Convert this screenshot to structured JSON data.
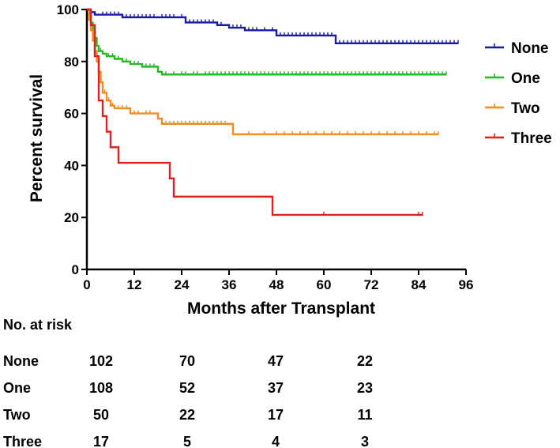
{
  "chart_data": {
    "type": "line",
    "subtype": "kaplan-meier",
    "title": "",
    "xlabel": "Months after Transplant",
    "ylabel": "Percent survival",
    "xlim": [
      0,
      96
    ],
    "ylim": [
      0,
      100
    ],
    "xticks": [
      0,
      12,
      24,
      36,
      48,
      60,
      72,
      84,
      96
    ],
    "yticks": [
      0,
      20,
      40,
      60,
      80,
      100
    ],
    "grid": false,
    "legend_position": "right",
    "series": [
      {
        "name": "None",
        "color": "#1a1aa6",
        "steps": [
          [
            0,
            100
          ],
          [
            1,
            99
          ],
          [
            2,
            98
          ],
          [
            9,
            97
          ],
          [
            17,
            97
          ],
          [
            25,
            95
          ],
          [
            33,
            94
          ],
          [
            36,
            93
          ],
          [
            40,
            92
          ],
          [
            48,
            90
          ],
          [
            63,
            87
          ],
          [
            94,
            87
          ]
        ],
        "censored_x": [
          2,
          4,
          5,
          6,
          7,
          8,
          9,
          10,
          11,
          12,
          13,
          14,
          15,
          16,
          17,
          19,
          20,
          21,
          22,
          24,
          26,
          27,
          28,
          29,
          30,
          31,
          32,
          34,
          37,
          38,
          39,
          41,
          42,
          43,
          45,
          47,
          49,
          50,
          51,
          52,
          53,
          54,
          55,
          56,
          57,
          58,
          59,
          60,
          61,
          62,
          64,
          65,
          66,
          67,
          68,
          69,
          70,
          71,
          72,
          73,
          74,
          75,
          76,
          77,
          78,
          79,
          80,
          81,
          82,
          83,
          84,
          85,
          86,
          87,
          88,
          89,
          90,
          91,
          92,
          93,
          94
        ]
      },
      {
        "name": "One",
        "color": "#22bb22",
        "steps": [
          [
            0,
            100
          ],
          [
            0.5,
            98
          ],
          [
            1,
            95
          ],
          [
            1.5,
            92
          ],
          [
            2,
            89
          ],
          [
            2.5,
            86
          ],
          [
            3,
            84
          ],
          [
            4,
            83
          ],
          [
            5,
            82
          ],
          [
            7,
            81
          ],
          [
            9,
            80
          ],
          [
            11,
            79
          ],
          [
            14,
            78
          ],
          [
            18,
            76
          ],
          [
            19,
            75
          ],
          [
            91,
            75
          ]
        ],
        "censored_x": [
          3.5,
          5.5,
          6.5,
          8,
          10,
          12,
          13,
          15,
          16,
          17,
          20,
          22,
          24,
          25,
          27,
          28,
          30,
          31,
          32,
          33,
          34,
          35,
          36,
          37,
          38,
          39,
          40,
          41,
          42,
          43,
          44,
          45,
          46,
          47,
          48,
          49,
          50,
          51,
          52,
          53,
          54,
          55,
          56,
          57,
          58,
          59,
          60,
          61,
          62,
          63,
          64,
          65,
          66,
          67,
          68,
          69,
          70,
          71,
          72,
          73,
          74,
          75,
          76,
          77,
          78,
          79,
          80,
          81,
          82,
          83,
          84,
          85,
          86,
          87,
          88,
          89,
          90,
          91
        ]
      },
      {
        "name": "Two",
        "color": "#f28c1f",
        "steps": [
          [
            0,
            100
          ],
          [
            0.5,
            96
          ],
          [
            1,
            92
          ],
          [
            1.5,
            88
          ],
          [
            2,
            84
          ],
          [
            2.5,
            80
          ],
          [
            3,
            76
          ],
          [
            3.5,
            72
          ],
          [
            4,
            68
          ],
          [
            5,
            65
          ],
          [
            6,
            63
          ],
          [
            7,
            62
          ],
          [
            11,
            60
          ],
          [
            18,
            58
          ],
          [
            19,
            56
          ],
          [
            37,
            52
          ],
          [
            89,
            52
          ]
        ],
        "censored_x": [
          4.5,
          5.5,
          6.5,
          8,
          9,
          10,
          12,
          13,
          15,
          16,
          20,
          21,
          22,
          23,
          24,
          25,
          26,
          27,
          28,
          29,
          30,
          31,
          32,
          33,
          34,
          35,
          41,
          45,
          48,
          50,
          52,
          54,
          56,
          58,
          60,
          62,
          64,
          66,
          68,
          70,
          72,
          74,
          76,
          78,
          80,
          82,
          84,
          86,
          88,
          89
        ]
      },
      {
        "name": "Three",
        "color": "#e02020",
        "steps": [
          [
            0,
            100
          ],
          [
            1,
            94
          ],
          [
            2,
            82
          ],
          [
            3,
            65
          ],
          [
            4,
            59
          ],
          [
            5,
            53
          ],
          [
            6,
            47
          ],
          [
            8,
            41
          ],
          [
            21,
            35
          ],
          [
            22,
            28
          ],
          [
            47,
            21
          ],
          [
            85,
            21
          ]
        ],
        "censored_x": [
          60,
          84,
          85
        ]
      }
    ],
    "risk_table": {
      "title": "No. at risk",
      "rows": [
        {
          "name": "None",
          "counts": [
            102,
            70,
            47,
            22
          ]
        },
        {
          "name": "One",
          "counts": [
            108,
            52,
            37,
            23
          ]
        },
        {
          "name": "Two",
          "counts": [
            50,
            22,
            17,
            11
          ]
        },
        {
          "name": "Three",
          "counts": [
            17,
            5,
            4,
            3
          ]
        }
      ]
    }
  }
}
